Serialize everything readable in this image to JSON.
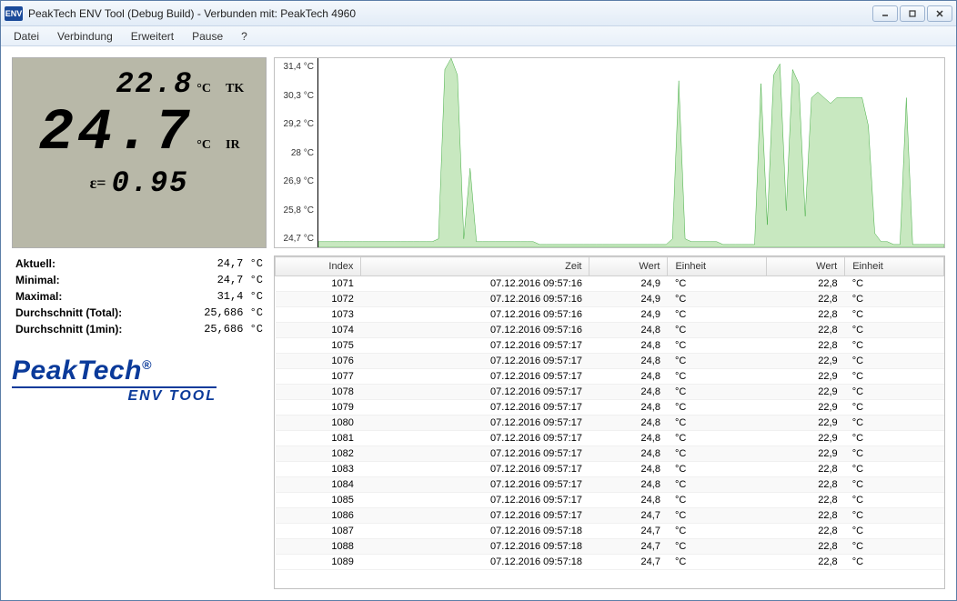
{
  "window": {
    "title": "PeakTech ENV Tool (Debug Build) - Verbunden mit: PeakTech 4960",
    "icon_text": "ENV"
  },
  "menu": {
    "items": [
      "Datei",
      "Verbindung",
      "Erweitert",
      "Pause",
      "?"
    ]
  },
  "lcd": {
    "tk_value": "22.8",
    "tk_unit": "°C",
    "tk_label": "TK",
    "ir_value": "24.7",
    "ir_unit": "°C",
    "ir_label": "IR",
    "eps_label": "ε=",
    "eps_value": "0.95",
    "bg_color": "#b8b8a8"
  },
  "stats": {
    "rows": [
      {
        "label": "Aktuell:",
        "value": "24,7 °C"
      },
      {
        "label": "Minimal:",
        "value": "24,7 °C"
      },
      {
        "label": "Maximal:",
        "value": "31,4 °C"
      },
      {
        "label": "Durchschnitt (Total):",
        "value": "25,686 °C"
      },
      {
        "label": "Durchschnitt (1min):",
        "value": "25,686 °C"
      }
    ]
  },
  "logo": {
    "main": "PeakTech",
    "reg": "®",
    "sub": "ENV TOOL",
    "color": "#0a3a9a"
  },
  "chart": {
    "type": "area",
    "stroke_color": "#1a9a1a",
    "fill_color": "#c8e8c0",
    "bg_color": "#ffffff",
    "ymin": 24.7,
    "ymax": 31.4,
    "yticks": [
      "31,4 °C",
      "30,3 °C",
      "29,2 °C",
      "28 °C",
      "26,9 °C",
      "25,8 °C",
      "24,7 °C"
    ],
    "data": [
      24.9,
      24.9,
      24.9,
      24.9,
      24.9,
      24.9,
      24.9,
      24.9,
      24.9,
      24.9,
      24.9,
      24.9,
      24.9,
      24.9,
      24.9,
      24.9,
      24.9,
      24.9,
      24.9,
      25.0,
      31.0,
      31.4,
      30.8,
      25.0,
      27.5,
      24.9,
      24.9,
      24.9,
      24.9,
      24.9,
      24.9,
      24.9,
      24.9,
      24.9,
      24.9,
      24.8,
      24.8,
      24.8,
      24.8,
      24.8,
      24.8,
      24.8,
      24.8,
      24.8,
      24.8,
      24.8,
      24.8,
      24.8,
      24.8,
      24.8,
      24.8,
      24.8,
      24.8,
      24.8,
      24.8,
      24.8,
      25.0,
      30.6,
      25.0,
      24.9,
      24.9,
      24.9,
      24.9,
      24.9,
      24.8,
      24.8,
      24.8,
      24.8,
      24.8,
      24.8,
      30.5,
      25.5,
      30.8,
      31.2,
      26.0,
      31.0,
      30.5,
      25.8,
      30.0,
      30.2,
      30.0,
      29.8,
      30.0,
      30.0,
      30.0,
      30.0,
      30.0,
      29.0,
      25.2,
      24.9,
      24.9,
      24.8,
      24.8,
      30.0,
      24.8,
      24.8,
      24.8,
      24.8,
      24.8,
      24.8
    ]
  },
  "table": {
    "columns": [
      "Index",
      "Zeit",
      "Wert",
      "Einheit",
      "Wert",
      "Einheit"
    ],
    "rows": [
      [
        "1071",
        "07.12.2016 09:57:16",
        "24,9",
        "°C",
        "22,8",
        "°C"
      ],
      [
        "1072",
        "07.12.2016 09:57:16",
        "24,9",
        "°C",
        "22,8",
        "°C"
      ],
      [
        "1073",
        "07.12.2016 09:57:16",
        "24,9",
        "°C",
        "22,8",
        "°C"
      ],
      [
        "1074",
        "07.12.2016 09:57:16",
        "24,8",
        "°C",
        "22,8",
        "°C"
      ],
      [
        "1075",
        "07.12.2016 09:57:17",
        "24,8",
        "°C",
        "22,8",
        "°C"
      ],
      [
        "1076",
        "07.12.2016 09:57:17",
        "24,8",
        "°C",
        "22,9",
        "°C"
      ],
      [
        "1077",
        "07.12.2016 09:57:17",
        "24,8",
        "°C",
        "22,9",
        "°C"
      ],
      [
        "1078",
        "07.12.2016 09:57:17",
        "24,8",
        "°C",
        "22,9",
        "°C"
      ],
      [
        "1079",
        "07.12.2016 09:57:17",
        "24,8",
        "°C",
        "22,9",
        "°C"
      ],
      [
        "1080",
        "07.12.2016 09:57:17",
        "24,8",
        "°C",
        "22,9",
        "°C"
      ],
      [
        "1081",
        "07.12.2016 09:57:17",
        "24,8",
        "°C",
        "22,9",
        "°C"
      ],
      [
        "1082",
        "07.12.2016 09:57:17",
        "24,8",
        "°C",
        "22,9",
        "°C"
      ],
      [
        "1083",
        "07.12.2016 09:57:17",
        "24,8",
        "°C",
        "22,8",
        "°C"
      ],
      [
        "1084",
        "07.12.2016 09:57:17",
        "24,8",
        "°C",
        "22,8",
        "°C"
      ],
      [
        "1085",
        "07.12.2016 09:57:17",
        "24,8",
        "°C",
        "22,8",
        "°C"
      ],
      [
        "1086",
        "07.12.2016 09:57:17",
        "24,7",
        "°C",
        "22,8",
        "°C"
      ],
      [
        "1087",
        "07.12.2016 09:57:18",
        "24,7",
        "°C",
        "22,8",
        "°C"
      ],
      [
        "1088",
        "07.12.2016 09:57:18",
        "24,7",
        "°C",
        "22,8",
        "°C"
      ],
      [
        "1089",
        "07.12.2016 09:57:18",
        "24,7",
        "°C",
        "22,8",
        "°C"
      ]
    ]
  }
}
